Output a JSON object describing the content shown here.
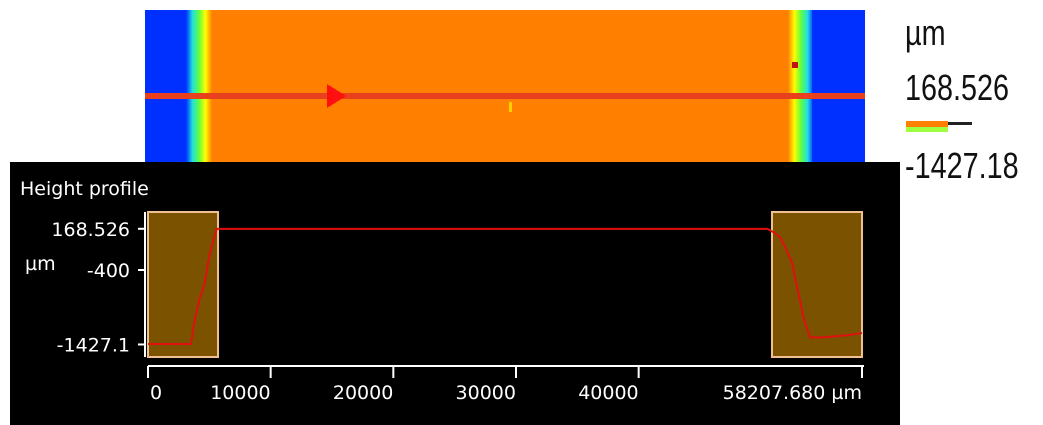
{
  "chart_data": {
    "type": "line",
    "title": "Height profile",
    "y_unit": "µm",
    "x_end_label": "58207.680 µm",
    "x": [
      0,
      3500,
      3800,
      4200,
      4600,
      5000,
      5600,
      50500,
      51000,
      51500,
      52000,
      52500,
      53000,
      53500,
      54000,
      55000,
      57000,
      58207.68
    ],
    "values": [
      -1420,
      -1420,
      -1100,
      -800,
      -600,
      -200,
      168,
      168,
      120,
      60,
      -100,
      -300,
      -700,
      -1100,
      -1330,
      -1330,
      -1300,
      -1270
    ],
    "color": "#e01010",
    "xlim": [
      0,
      58207.68
    ],
    "xticks": [
      0,
      10000,
      20000,
      30000,
      40000
    ],
    "ylim": [
      -1600,
      400
    ],
    "yticks": [
      168.526,
      -400,
      -1427.1
    ]
  },
  "color_scale": {
    "unit": "µm",
    "max": 168.526,
    "min": -1427.18
  }
}
